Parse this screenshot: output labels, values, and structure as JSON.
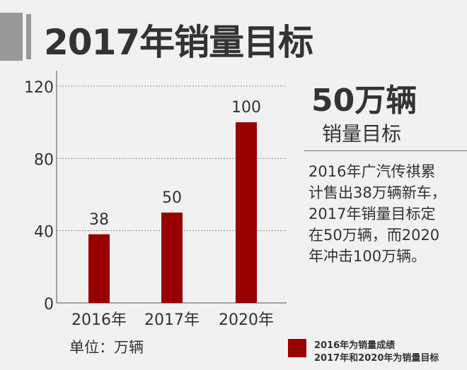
{
  "title": "2017年销量目标",
  "highlight": {
    "value": "50万辆",
    "label": "销量目标"
  },
  "description": [
    "2016年广汽传祺累",
    "计售出38万辆新车，",
    "2017年销量目标定",
    "在50万辆，而2020",
    "年冲击100万辆。"
  ],
  "unit_label": "单位：万辆",
  "legend": {
    "color": "#990000",
    "lines": [
      "2016年为销量成绩",
      "2017年和2020年为销量目标"
    ]
  },
  "chart_data": {
    "type": "bar",
    "categories": [
      "2016年",
      "2017年",
      "2020年"
    ],
    "values": [
      38,
      50,
      100
    ],
    "data_labels": [
      "38",
      "50",
      "100"
    ],
    "ylim": [
      0,
      120
    ],
    "yticks": [
      0,
      40,
      80,
      120
    ],
    "grid": true,
    "bar_color": "#990000"
  }
}
